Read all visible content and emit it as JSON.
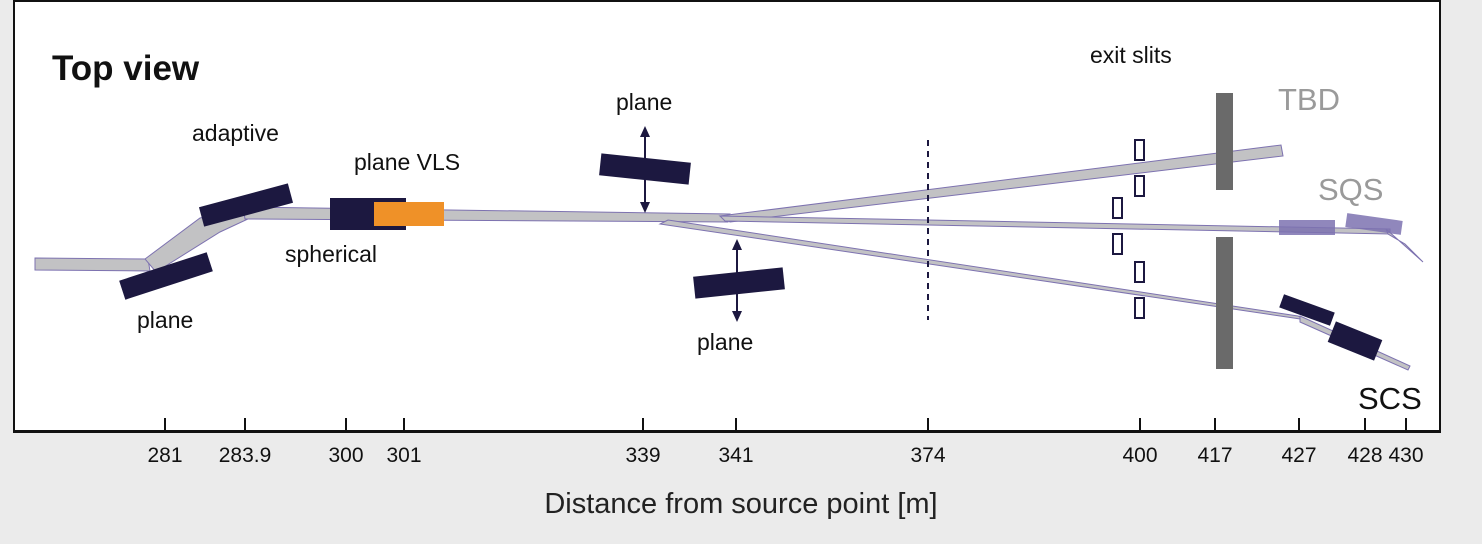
{
  "title": "Top view",
  "labels": {
    "exit_slits": "exit slits",
    "tbd": "TBD",
    "sqs": "SQS",
    "scs": "SCS",
    "adaptive": "adaptive",
    "plane_vls": "plane VLS",
    "spherical": "spherical",
    "plane_left": "plane",
    "plane_upper": "plane",
    "plane_lower": "plane"
  },
  "ticks": [
    "281",
    "283.9",
    "300",
    "301",
    "339",
    "341",
    "374",
    "400",
    "417",
    "427",
    "428",
    "430"
  ],
  "xlabel": "Distance from source point [m]",
  "colors": {
    "beam_fill": "#c2c2c4",
    "beam_stroke": "#7d72b0",
    "mirror": "#1c1840",
    "grating": "#ef9128",
    "shield": "#6a6a6a",
    "gray_label": "#9a9a9a"
  }
}
